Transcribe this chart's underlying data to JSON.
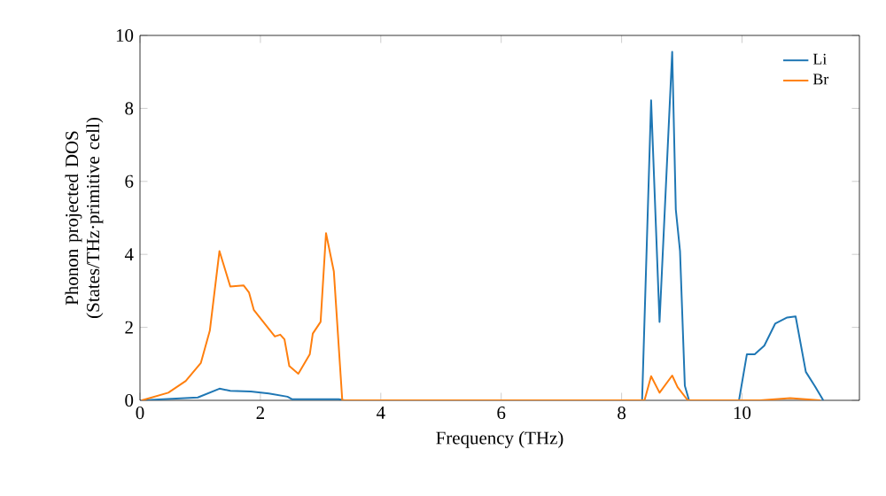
{
  "chart_data": {
    "type": "line",
    "xlabel": "Frequency (THz)",
    "ylabel": "Phonon projected DOS\n(States/THz·primitive cell)",
    "xlim": [
      0,
      11.95
    ],
    "ylim": [
      0,
      10
    ],
    "xticks": [
      0,
      2,
      4,
      6,
      8,
      10
    ],
    "yticks": [
      0,
      2,
      4,
      6,
      8,
      10
    ],
    "legend": "top right",
    "grid": false,
    "series": [
      {
        "name": "Li",
        "color": "#1f77b4",
        "x": [
          0.03,
          0.96,
          1.32,
          1.5,
          1.84,
          2.14,
          2.45,
          2.53,
          3.3,
          3.4,
          8.34,
          8.49,
          8.63,
          8.84,
          8.9,
          8.97,
          9.05,
          9.12,
          9.95,
          10.08,
          10.21,
          10.37,
          10.55,
          10.75,
          10.89,
          11.06,
          11.21,
          11.35
        ],
        "values": [
          0,
          0.08,
          0.32,
          0.26,
          0.24,
          0.19,
          0.1,
          0.03,
          0.03,
          0,
          0,
          8.22,
          2.15,
          9.55,
          5.23,
          4.09,
          0.4,
          0,
          0,
          1.26,
          1.26,
          1.5,
          2.1,
          2.27,
          2.3,
          0.78,
          0.39,
          0
        ]
      },
      {
        "name": "Br",
        "color": "#ff7f0e",
        "x": [
          0.03,
          0.47,
          0.76,
          1.01,
          1.16,
          1.32,
          1.5,
          1.72,
          1.81,
          1.89,
          2.24,
          2.33,
          2.4,
          2.48,
          2.63,
          2.82,
          2.87,
          3.0,
          3.09,
          3.22,
          3.36,
          8.38,
          8.49,
          8.63,
          8.84,
          8.93,
          9.1,
          10.3,
          10.8,
          11.3
        ],
        "values": [
          0,
          0.21,
          0.53,
          1.02,
          1.91,
          4.09,
          3.12,
          3.15,
          2.96,
          2.48,
          1.75,
          1.8,
          1.67,
          0.94,
          0.73,
          1.26,
          1.83,
          2.15,
          4.58,
          3.53,
          0,
          0,
          0.66,
          0.21,
          0.68,
          0.36,
          0,
          0,
          0.06,
          0
        ]
      }
    ]
  }
}
